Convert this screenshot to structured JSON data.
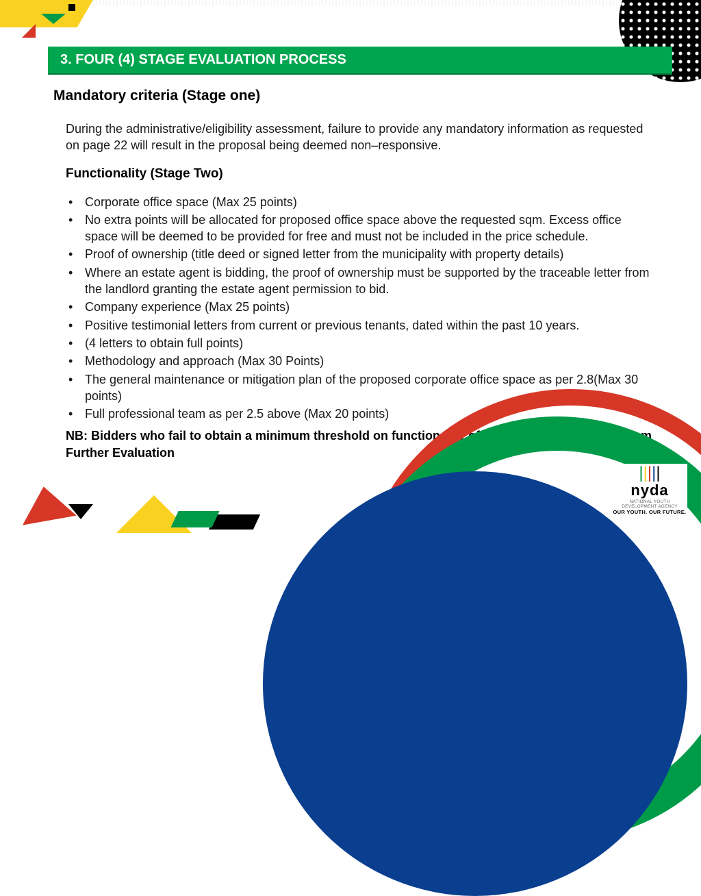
{
  "colors": {
    "green": "#00a64f",
    "green_dark": "#009b48",
    "red": "#d73727",
    "yellow": "#f9d221",
    "blue": "#0a3e8f",
    "black": "#000000",
    "white": "#ffffff",
    "text": "#1a1a1a"
  },
  "typography": {
    "font_family": "Arial",
    "header_fontsize_pt": 15,
    "sub1_fontsize_pt": 16,
    "sub2_fontsize_pt": 14,
    "body_fontsize_pt": 13.5
  },
  "header": {
    "title": "3. FOUR (4) STAGE EVALUATION PROCESS"
  },
  "sub1": "Mandatory criteria (Stage one)",
  "paragraph": "During the administrative/eligibility assessment, failure to provide any mandatory information as requested on page 22 will result in the proposal being deemed non–responsive.",
  "sub2": "Functionality (Stage Two)",
  "bullets": [
    "Corporate office space (Max 25 points)",
    " No extra points will be allocated for proposed office space above the requested sqm. Excess office space will be deemed to be provided for free and must not be included in the price schedule.",
    "Proof of ownership (title deed or signed letter from the municipality with property details)",
    "Where an estate agent is bidding, the proof of ownership must be supported by the traceable letter from the landlord granting the estate agent permission to bid.",
    "Company experience (Max 25 points)",
    "Positive  testimonial  letters from current or  previous tenants, dated within the past 10 years.",
    "(4 letters to obtain full points)",
    "Methodology and approach (Max 30 Points)",
    "The general maintenance or mitigation plan of the proposed corporate office space as per 2.8(Max 30 points)",
    "Full professional team as per 2.5 above (Max 20 points)"
  ],
  "nb": "NB: Bidders who fail to obtain a minimum threshold on functionality of 65% will be disqualified from Further Evaluation",
  "logo": {
    "name": "nyda",
    "subtitle": "NATIONAL YOUTH DEVELOPMENT AGENCY",
    "tagline": "OUR YOUTH. OUR FUTURE."
  }
}
